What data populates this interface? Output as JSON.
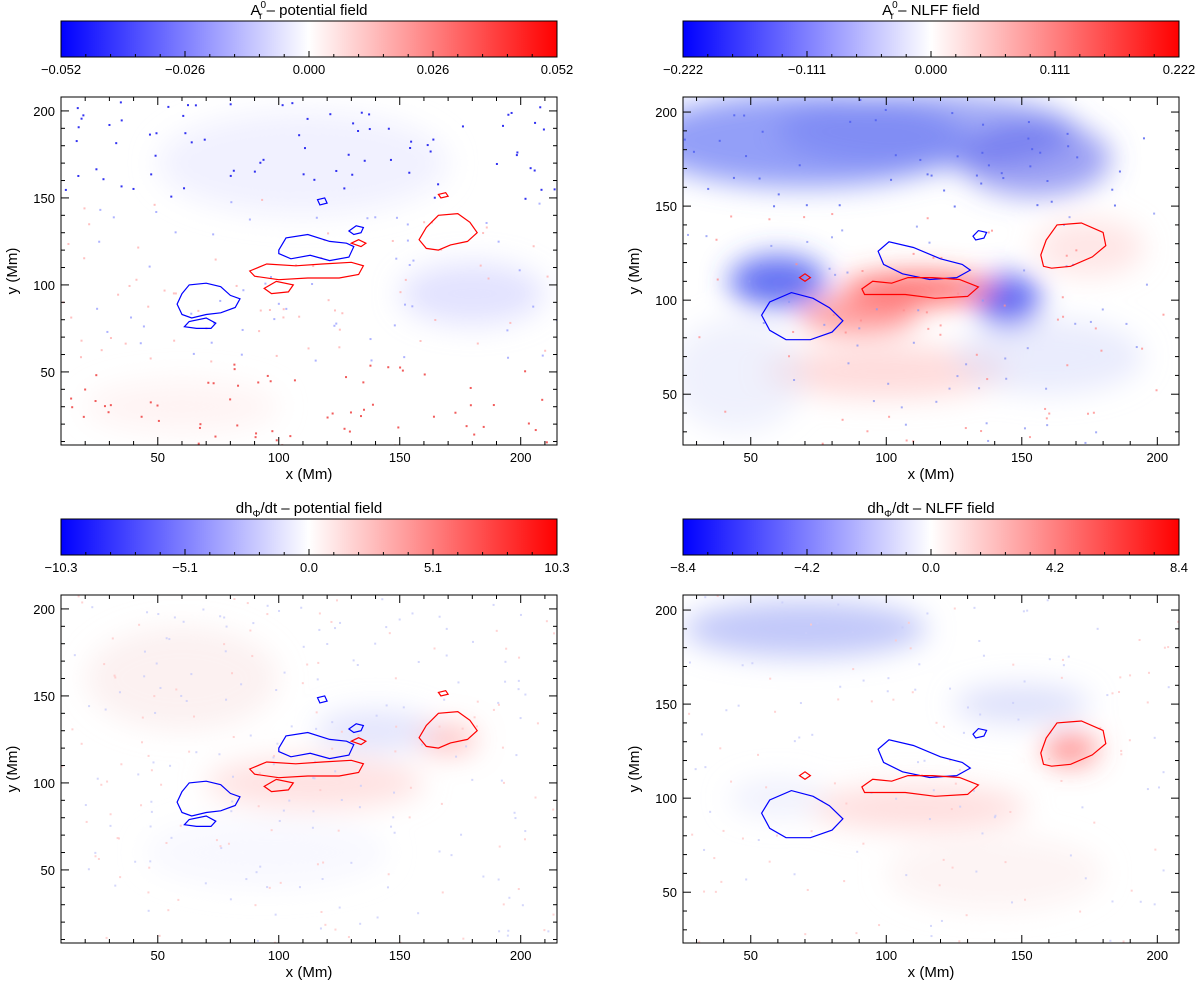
{
  "chart_data": [
    {
      "type": "heatmap",
      "title": "A_r^0 – potential field",
      "title_main": "A",
      "title_sup": "0",
      "title_sub": "r",
      "title_rest": " – potential field",
      "colorbar": {
        "range": [
          -0.052,
          0.052
        ],
        "ticks": [
          "−0.052",
          "−0.026",
          "0.000",
          "0.026",
          "0.052"
        ],
        "colormap": "blue-white-red"
      },
      "xlabel": "x (Mm)",
      "ylabel": "y (Mm)",
      "xlim": [
        10,
        215
      ],
      "ylim": [
        8,
        208
      ],
      "xticks": [
        50,
        100,
        150,
        200
      ],
      "yticks": [
        50,
        100,
        150,
        200
      ],
      "contours": [
        {
          "polarity": "negative",
          "color": "#0000ff"
        },
        {
          "polarity": "positive",
          "color": "#ff0000"
        }
      ]
    },
    {
      "type": "heatmap",
      "title": "A_r^0 – NLFF field",
      "title_main": "A",
      "title_sup": "0",
      "title_sub": "r",
      "title_rest": " – NLFF field",
      "colorbar": {
        "range": [
          -0.222,
          0.222
        ],
        "ticks": [
          "−0.222",
          "−0.111",
          "0.000",
          "0.111",
          "0.222"
        ],
        "colormap": "blue-white-red"
      },
      "xlabel": "x (Mm)",
      "ylabel": "y (Mm)",
      "xlim": [
        25,
        208
      ],
      "ylim": [
        23,
        208
      ],
      "xticks": [
        50,
        100,
        150,
        200
      ],
      "yticks": [
        50,
        100,
        150,
        200
      ],
      "contours": [
        {
          "polarity": "negative",
          "color": "#0000ff"
        },
        {
          "polarity": "positive",
          "color": "#ff0000"
        }
      ]
    },
    {
      "type": "heatmap",
      "title": "dh_Φ/dt – potential field",
      "title_main": "dh",
      "title_sub": "Φ",
      "title_rest": "/dt – potential field",
      "colorbar": {
        "range": [
          -10.3,
          10.3
        ],
        "ticks": [
          "−10.3",
          "−5.1",
          "0.0",
          "5.1",
          "10.3"
        ],
        "colormap": "blue-white-red"
      },
      "xlabel": "x (Mm)",
      "ylabel": "y (Mm)",
      "xlim": [
        10,
        215
      ],
      "ylim": [
        8,
        208
      ],
      "xticks": [
        50,
        100,
        150,
        200
      ],
      "yticks": [
        50,
        100,
        150,
        200
      ],
      "contours": [
        {
          "polarity": "negative",
          "color": "#0000ff"
        },
        {
          "polarity": "positive",
          "color": "#ff0000"
        }
      ]
    },
    {
      "type": "heatmap",
      "title": "dh_Φ/dt – NLFF field",
      "title_main": "dh",
      "title_sub": "Φ",
      "title_rest": "/dt – NLFF field",
      "colorbar": {
        "range": [
          -8.4,
          8.4
        ],
        "ticks": [
          "−8.4",
          "−4.2",
          "0.0",
          "4.2",
          "8.4"
        ],
        "colormap": "blue-white-red"
      },
      "xlabel": "x (Mm)",
      "ylabel": "y (Mm)",
      "xlim": [
        25,
        208
      ],
      "ylim": [
        23,
        208
      ],
      "xticks": [
        50,
        100,
        150,
        200
      ],
      "yticks": [
        50,
        100,
        150,
        200
      ],
      "contours": [
        {
          "polarity": "negative",
          "color": "#0000ff"
        },
        {
          "polarity": "positive",
          "color": "#ff0000"
        }
      ]
    }
  ]
}
